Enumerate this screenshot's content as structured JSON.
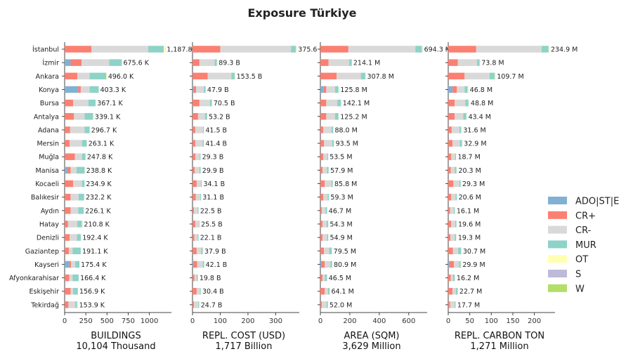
{
  "chart_data": {
    "type": "bar",
    "orientation": "horizontal",
    "stacked": true,
    "title": "Exposure Türkiye",
    "categories": [
      "İstanbul",
      "İzmir",
      "Ankara",
      "Konya",
      "Bursa",
      "Antalya",
      "Adana",
      "Mersin",
      "Muğla",
      "Manisa",
      "Kocaeli",
      "Balıkesir",
      "Aydın",
      "Hatay",
      "Denizli",
      "Gaziantep",
      "Kayseri",
      "Afyonkarahisar",
      "Eskişehir",
      "Tekirdağ"
    ],
    "legend": {
      "position": "right",
      "entries": [
        {
          "key": "ADO",
          "name": "ADO|ST|E",
          "color": "#80b1d3"
        },
        {
          "key": "CRP",
          "name": "CR+",
          "color": "#fb8072"
        },
        {
          "key": "CRM",
          "name": "CR-",
          "color": "#d9d9d9"
        },
        {
          "key": "MUR",
          "name": "MUR",
          "color": "#8dd3c7"
        },
        {
          "key": "OT",
          "name": "OT",
          "color": "#ffffb3"
        },
        {
          "key": "S",
          "name": "S",
          "color": "#bebada"
        },
        {
          "key": "W",
          "name": "W",
          "color": "#b3de69"
        }
      ]
    },
    "panels": [
      {
        "xlabel": "BUILDINGS",
        "total_label": "10,104 Thousand",
        "xlim": [
          0,
          1260
        ],
        "xticks": [
          0,
          250,
          500,
          750,
          1000
        ],
        "unit_suffix": " K",
        "value_decimals": 1,
        "bar_labels": [
          "1,187.8",
          "675.6",
          "496.0",
          "403.3",
          "367.1",
          "339.1",
          "296.7",
          "263.1",
          "247.8",
          "238.8",
          "234.9",
          "232.2",
          "226.1",
          "210.8",
          "192.4",
          "191.1",
          "175.4",
          "166.4",
          "156.9",
          "153.9"
        ],
        "series": [
          {
            "key": "ADO",
            "values": [
              0,
              70,
              0,
              160,
              0,
              0,
              0,
              0,
              0,
              30,
              0,
              0,
              0,
              0,
              0,
              0,
              55,
              0,
              0,
              0
            ]
          },
          {
            "key": "CRP",
            "values": [
              315,
              130,
              150,
              30,
              100,
              110,
              65,
              60,
              120,
              40,
              100,
              70,
              70,
              40,
              60,
              50,
              20,
              55,
              70,
              45
            ]
          },
          {
            "key": "CRM",
            "values": [
              670,
              325,
              145,
              105,
              180,
              125,
              170,
              145,
              85,
              70,
              105,
              95,
              90,
              110,
              85,
              45,
              50,
              40,
              30,
              80
            ]
          },
          {
            "key": "MUR",
            "values": [
              185,
              150,
              195,
              105,
              85,
              100,
              60,
              55,
              40,
              95,
              30,
              65,
              65,
              55,
              45,
              95,
              50,
              70,
              55,
              20
            ]
          },
          {
            "key": "OT",
            "values": [
              15,
              0,
              3,
              0,
              2,
              2,
              1,
              1,
              1,
              1,
              0,
              1,
              0,
              3,
              0,
              0,
              0,
              0,
              0,
              5
            ]
          },
          {
            "key": "S",
            "values": [
              2,
              0,
              0,
              3,
              0,
              0,
              0,
              2,
              1,
              2,
              0,
              1,
              1,
              2,
              2,
              1,
              0,
              1,
              2,
              3
            ]
          },
          {
            "key": "W",
            "values": [
              0.8,
              0.6,
              3,
              0.3,
              0.1,
              2.1,
              0.7,
              0.1,
              0.8,
              0.8,
              -0.1,
              0.2,
              0.1,
              0.8,
              0.4,
              0.1,
              0.4,
              0.4,
              -0.1,
              0.9
            ]
          }
        ]
      },
      {
        "xlabel": "REPL. COST (USD)",
        "total_label": "1,717 Billion",
        "xlim": [
          0,
          385
        ],
        "xticks": [
          0,
          100,
          200,
          300
        ],
        "unit_suffix": " B",
        "value_decimals": 1,
        "bar_labels": [
          "375.6",
          "89.3",
          "153.5",
          "47.9",
          "70.5",
          "53.2",
          "41.5",
          "41.4",
          "29.3",
          "29.9",
          "34.1",
          "31.1",
          "22.5",
          "25.5",
          "22.1",
          "37.9",
          "42.1",
          "19.8",
          "30.4",
          "24.7"
        ],
        "series": [
          {
            "key": "ADO",
            "values": [
              0,
              0,
              0,
              3,
              0,
              0,
              0,
              0,
              0,
              0,
              0,
              0,
              0,
              0,
              0,
              0,
              2,
              0,
              0,
              0
            ]
          },
          {
            "key": "CRP",
            "values": [
              100,
              25,
              55,
              10,
              25,
              20,
              10,
              10,
              10,
              8,
              15,
              12,
              5,
              10,
              7,
              15,
              15,
              7,
              15,
              5
            ]
          },
          {
            "key": "CRM",
            "values": [
              255,
              55,
              85,
              28,
              38,
              25,
              28,
              27,
              16,
              17,
              15,
              16,
              14,
              13,
              12,
              16,
              20,
              8,
              12,
              16
            ]
          },
          {
            "key": "MUR",
            "values": [
              18,
              8,
              12,
              6,
              7,
              7,
              3,
              4,
              3,
              4,
              3,
              3,
              3,
              2,
              3,
              6,
              5,
              4,
              3,
              3
            ]
          },
          {
            "key": "OT",
            "values": [
              2,
              1,
              1,
              0.5,
              0.4,
              0.6,
              0.4,
              0.3,
              0.2,
              0.4,
              1,
              0.1,
              0.4,
              0.3,
              0.1,
              0.8,
              0,
              0.6,
              0.3,
              0.6
            ]
          },
          {
            "key": "S",
            "values": [
              0.6,
              0.3,
              0.5,
              0.4,
              0.1,
              0.6,
              0.1,
              0.1,
              0.1,
              0.5,
              0.1,
              0,
              0.1,
              0.2,
              0,
              0.1,
              0.1,
              0.2,
              0.1,
              0.1
            ]
          },
          {
            "key": "W",
            "values": [
              0,
              0,
              0,
              0,
              0,
              0,
              0,
              0,
              0,
              0,
              0,
              0,
              0,
              0,
              0,
              0,
              0,
              0,
              0,
              0
            ]
          }
        ]
      },
      {
        "xlabel": "AREA (SQM)",
        "total_label": "3,629 Million",
        "xlim": [
          0,
          725
        ],
        "xticks": [
          0,
          200,
          400,
          600
        ],
        "unit_suffix": " M",
        "value_decimals": 1,
        "bar_labels": [
          "694.3",
          "214.1",
          "307.8",
          "125.8",
          "142.1",
          "125.2",
          "88.0",
          "93.5",
          "53.5",
          "57.9",
          "85.8",
          "59.3",
          "46.7",
          "54.3",
          "54.9",
          "79.5",
          "80.9",
          "46.5",
          "64.1",
          "52.0"
        ],
        "series": [
          {
            "key": "ADO",
            "values": [
              0,
              0,
              0,
              20,
              0,
              0,
              0,
              0,
              0,
              0,
              0,
              0,
              0,
              0,
              0,
              0,
              5,
              0,
              0,
              0
            ]
          },
          {
            "key": "CRP",
            "values": [
              190,
              55,
              110,
              20,
              40,
              40,
              20,
              25,
              20,
              15,
              30,
              20,
              10,
              15,
              15,
              25,
              25,
              15,
              30,
              10
            ]
          },
          {
            "key": "CRM",
            "values": [
              455,
              140,
              165,
              60,
              75,
              60,
              55,
              55,
              25,
              30,
              45,
              30,
              25,
              28,
              30,
              35,
              38,
              16,
              22,
              32
            ]
          },
          {
            "key": "MUR",
            "values": [
              45,
              18,
              30,
              23,
              25,
              23,
              12,
              12,
              7,
              11,
              9,
              8,
              10,
              10,
              9,
              18,
              12,
              14,
              11,
              8
            ]
          },
          {
            "key": "OT",
            "values": [
              3,
              0.5,
              1.5,
              1.5,
              1.5,
              1.5,
              0.7,
              1,
              0.5,
              1,
              1.5,
              0.8,
              0.7,
              0.8,
              0.6,
              1,
              0.6,
              1,
              0.6,
              1
            ]
          },
          {
            "key": "S",
            "values": [
              1.3,
              0.6,
              1.3,
              1.3,
              0.6,
              0.7,
              0.3,
              0.5,
              1,
              0.9,
              0.3,
              0.5,
              1,
              0.5,
              0.3,
              0.5,
              0.3,
              0.5,
              0.5,
              1
            ]
          },
          {
            "key": "W",
            "values": [
              0,
              0,
              0,
              0,
              0,
              0,
              0,
              0,
              0,
              0,
              0,
              0,
              0,
              0,
              0,
              0,
              0,
              0,
              0,
              0
            ]
          }
        ]
      },
      {
        "xlabel": "REPL. CARBON TON",
        "total_label": "1,271 Million",
        "xlim": [
          0,
          248
        ],
        "xticks": [
          0,
          50,
          100,
          150,
          200
        ],
        "unit_suffix": " M",
        "value_decimals": 1,
        "bar_labels": [
          "234.9",
          "73.8",
          "109.7",
          "46.8",
          "48.8",
          "43.4",
          "31.6",
          "32.9",
          "18.7",
          "20.3",
          "29.3",
          "20.6",
          "16.1",
          "19.6",
          "19.3",
          "30.7",
          "29.9",
          "16.2",
          "22.7",
          "17.7"
        ],
        "series": [
          {
            "key": "ADO",
            "values": [
              0,
              0,
              0,
              10,
              0,
              0,
              0,
              0,
              0,
              0,
              0,
              0,
              0,
              0,
              0,
              0,
              2,
              0,
              0,
              0
            ]
          },
          {
            "key": "CRP",
            "values": [
              65,
              22,
              38,
              10,
              15,
              15,
              8,
              10,
              7,
              6,
              12,
              7,
              4,
              7,
              5,
              11,
              11,
              6,
              10,
              4
            ]
          },
          {
            "key": "CRM",
            "values": [
              152,
              45,
              58,
              18,
              25,
              20,
              18,
              17,
              9,
              9,
              14,
              10,
              9,
              9,
              10,
              12,
              12,
              5,
              8,
              11
            ]
          },
          {
            "key": "MUR",
            "values": [
              16,
              6,
              12,
              7,
              7,
              7,
              4,
              5,
              2,
              4,
              3,
              3,
              2,
              3,
              3,
              7,
              4,
              4,
              4,
              2
            ]
          },
          {
            "key": "OT",
            "values": [
              1.5,
              0.5,
              1.2,
              1.5,
              1.5,
              1,
              1.2,
              0.6,
              0.5,
              0.9,
              0.3,
              0.4,
              0.7,
              0.4,
              0.9,
              0.4,
              0.6,
              0.8,
              0.5,
              0.5
            ]
          },
          {
            "key": "S",
            "values": [
              0.4,
              0.3,
              0.5,
              0.3,
              0.3,
              0.4,
              0.4,
              0.3,
              0.2,
              0.4,
              0,
              0.2,
              0.4,
              0.2,
              0.4,
              0.3,
              0.3,
              0.4,
              0.2,
              0.2
            ]
          },
          {
            "key": "W",
            "values": [
              0,
              0,
              0,
              0,
              0,
              0,
              0,
              0,
              0,
              0,
              0,
              0,
              0,
              0,
              0,
              0,
              0,
              0,
              0,
              0
            ]
          }
        ]
      }
    ]
  }
}
